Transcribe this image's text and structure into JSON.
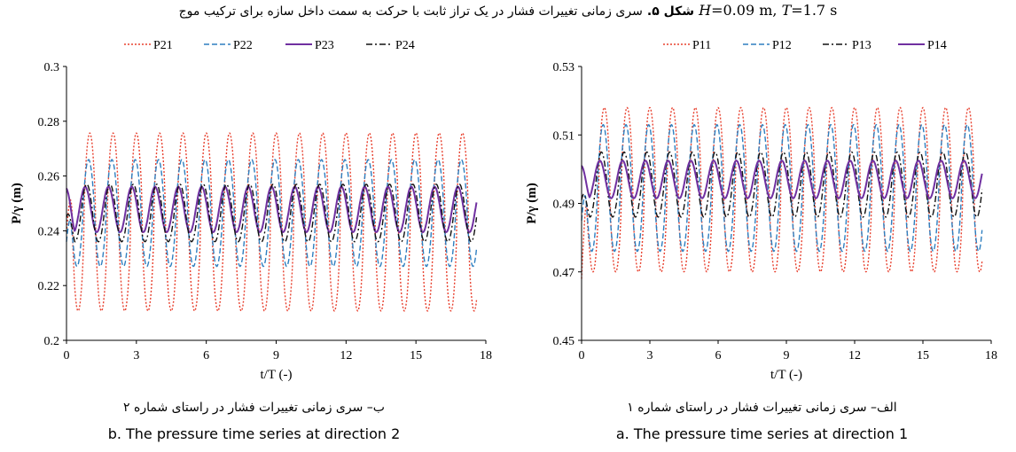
{
  "figure": {
    "title_label": "شکل ۵.",
    "title_text": "سری زمانی تغییرات فشار در یک تراز ثابت با حرکت به سمت داخل سازه برای ترکیب موج",
    "title_H_symbol": "H",
    "title_H_value": "=0.09 m, ",
    "title_T_symbol": "T",
    "title_T_value": "=1.7 s"
  },
  "left_panel": {
    "caption_fa": "ب– سری زمانی تغییرات فشار در راستای شماره ۲",
    "caption_en": "b. The pressure time series at direction 2"
  },
  "right_panel": {
    "caption_fa": "الف– سری زمانی تغییرات فشار در راستای شماره ۱",
    "caption_en": "a. The pressure time series at direction 1"
  },
  "chart_data": [
    {
      "type": "line",
      "panel": "left",
      "title": "",
      "xlabel": "t/T (-)",
      "ylabel": "P/γ (m)",
      "xlim": [
        0,
        18
      ],
      "ylim": [
        0.2,
        0.3
      ],
      "xticks": [
        0,
        3,
        6,
        9,
        12,
        15,
        18
      ],
      "yticks": [
        0.2,
        0.22,
        0.24,
        0.26,
        0.28,
        0.3
      ],
      "ytick_labels": [
        "0.2",
        "0.22",
        "0.24",
        "0.26",
        "0.28",
        "0.3"
      ],
      "grid": false,
      "legend_position": "top",
      "x_end": 17.6,
      "series": [
        {
          "name": "P21",
          "color": "#e8412f",
          "dash": "dotted",
          "mean": 0.2432,
          "amplitude": 0.0325,
          "phase": 0.25,
          "sharpness": 1.6,
          "start": 0.2395
        },
        {
          "name": "P22",
          "color": "#2e7fc0",
          "dash": "dashed",
          "mean": 0.2465,
          "amplitude": 0.0195,
          "phase": 0.3,
          "sharpness": 1.3,
          "start": 0.236
        },
        {
          "name": "P23",
          "color": "#7030a0",
          "dash": "solid",
          "mean": 0.2478,
          "amplitude": 0.0083,
          "phase": 0.45,
          "sharpness": 1.0,
          "start": 0.2555
        },
        {
          "name": "P24",
          "color": "#111111",
          "dash": "dashdot",
          "mean": 0.2465,
          "amplitude": 0.0105,
          "phase": 0.38,
          "sharpness": 1.1,
          "start": 0.245
        }
      ]
    },
    {
      "type": "line",
      "panel": "right",
      "title": "",
      "xlabel": "t/T (-)",
      "ylabel": "P/γ (m)",
      "xlim": [
        0,
        18
      ],
      "ylim": [
        0.45,
        0.53
      ],
      "xticks": [
        0,
        3,
        6,
        9,
        12,
        15,
        18
      ],
      "yticks": [
        0.45,
        0.47,
        0.49,
        0.51,
        0.53
      ],
      "ytick_labels": [
        "0.45",
        "0.47",
        "0.49",
        "0.51",
        "0.53"
      ],
      "grid": false,
      "legend_position": "top",
      "x_end": 17.6,
      "series": [
        {
          "name": "P11",
          "color": "#e8412f",
          "dash": "dotted",
          "mean": 0.494,
          "amplitude": 0.024,
          "phase": 0.25,
          "sharpness": 1.6,
          "start": 0.468
        },
        {
          "name": "P12",
          "color": "#2e7fc0",
          "dash": "dashed",
          "mean": 0.4945,
          "amplitude": 0.0185,
          "phase": 0.3,
          "sharpness": 1.3,
          "start": 0.485
        },
        {
          "name": "P13",
          "color": "#111111",
          "dash": "dashdot",
          "mean": 0.4955,
          "amplitude": 0.0095,
          "phase": 0.38,
          "sharpness": 1.1,
          "start": 0.491
        },
        {
          "name": "P14",
          "color": "#7030a0",
          "dash": "solid",
          "mean": 0.497,
          "amplitude": 0.0055,
          "phase": 0.45,
          "sharpness": 1.0,
          "start": 0.501
        }
      ]
    }
  ]
}
